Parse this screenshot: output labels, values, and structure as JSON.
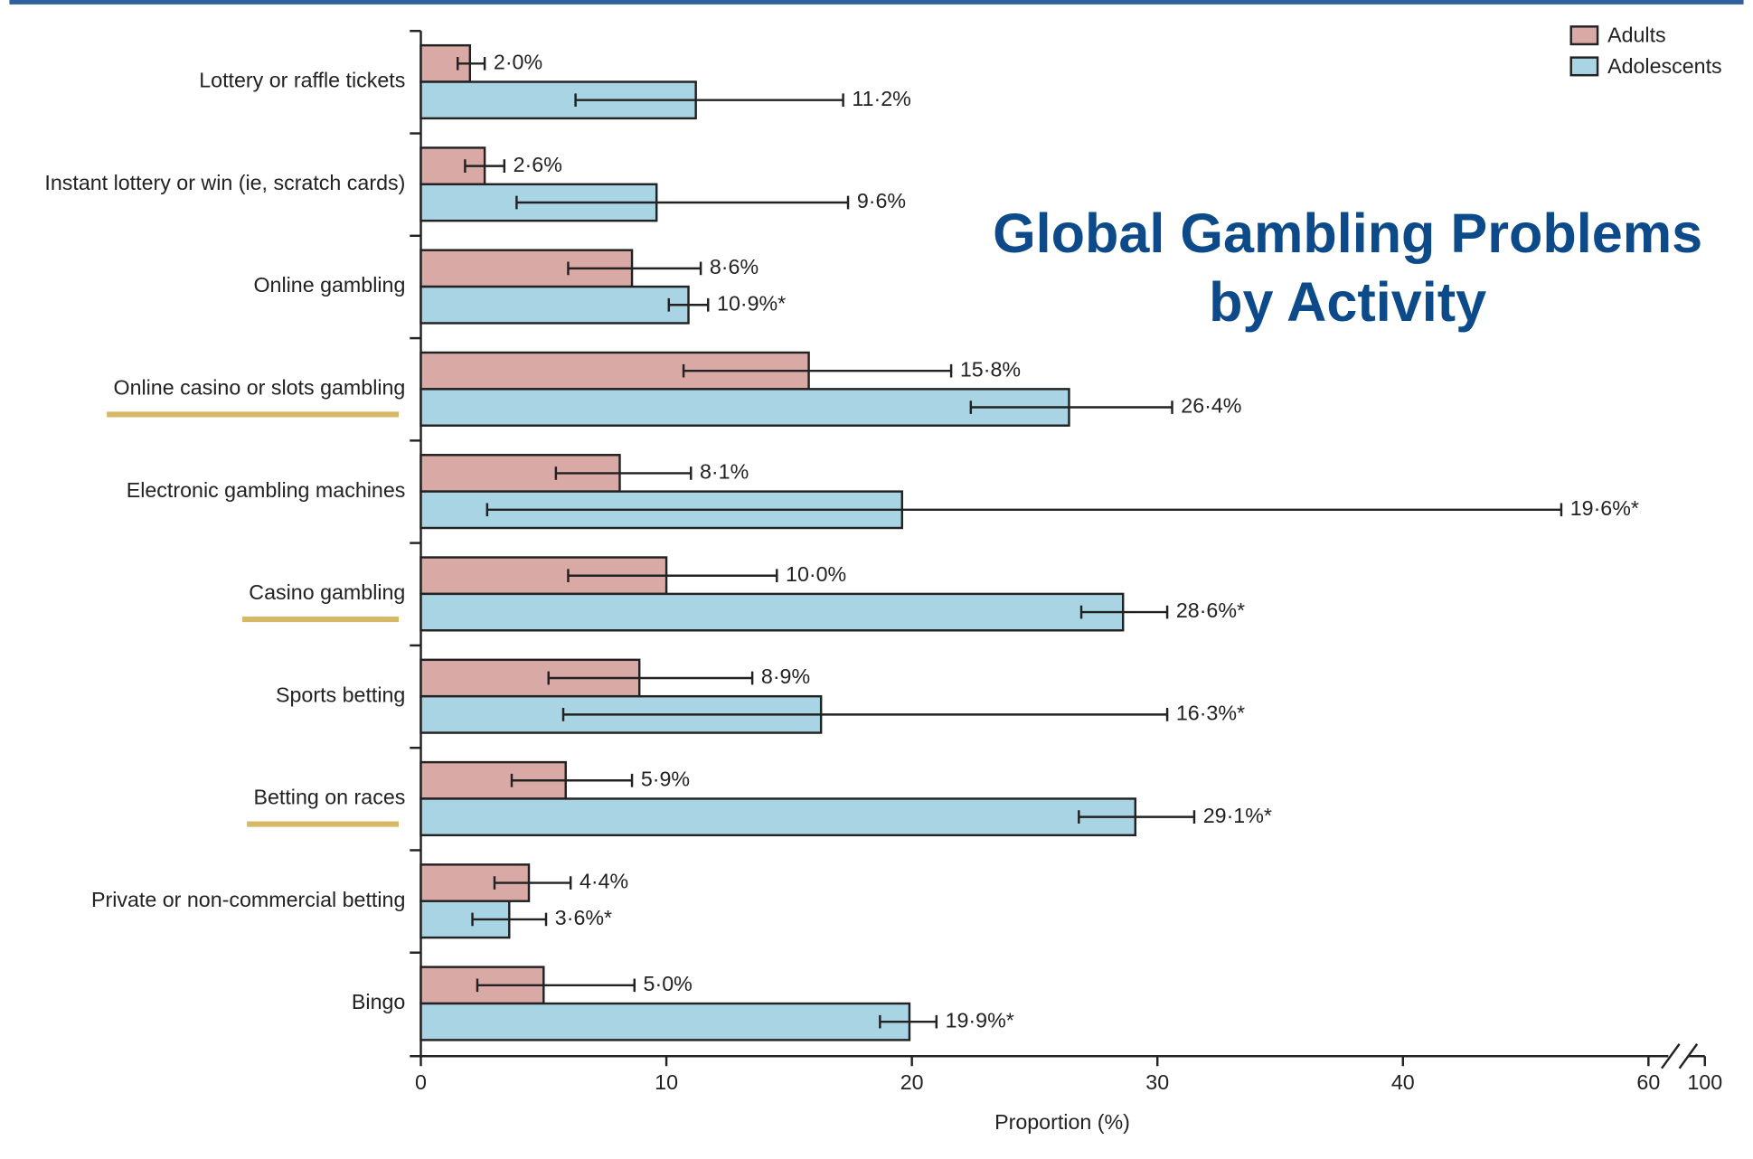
{
  "chart_data": {
    "type": "bar",
    "orientation": "horizontal",
    "title": "Global Gambling Problems by Activity",
    "xlabel": "Proportion (%)",
    "categories": [
      "Lottery or raffle tickets",
      "Instant lottery or win (ie, scratch cards)",
      "Online gambling",
      "Online casino or slots gambling",
      "Electronic gambling machines",
      "Casino gambling",
      "Sports betting",
      "Betting on races",
      "Private or non-commercial betting",
      "Bingo"
    ],
    "highlight": [
      false,
      false,
      false,
      true,
      false,
      true,
      false,
      true,
      false,
      false
    ],
    "highlight_color": "#d6b867",
    "series": [
      {
        "name": "Adults",
        "color": "#d9a9a6",
        "values": [
          2.0,
          2.6,
          8.6,
          15.8,
          8.1,
          10.0,
          8.9,
          5.9,
          4.4,
          5.0
        ],
        "value_labels": [
          "2·0%",
          "2·6%",
          "8·6%",
          "15·8%",
          "8·1%",
          "10·0%",
          "8·9%",
          "5·9%",
          "4·4%",
          "5·0%"
        ],
        "error_low": [
          1.5,
          1.8,
          6.0,
          10.7,
          5.5,
          6.0,
          5.2,
          3.7,
          3.0,
          2.3
        ],
        "error_high": [
          2.6,
          3.4,
          11.4,
          21.6,
          11.0,
          14.5,
          13.5,
          8.6,
          6.1,
          8.7
        ]
      },
      {
        "name": "Adolescents",
        "color": "#a9d4e4",
        "values": [
          11.2,
          9.6,
          10.9,
          26.4,
          19.6,
          28.6,
          16.3,
          29.1,
          3.6,
          19.9
        ],
        "value_labels": [
          "11·2%",
          "9·6%",
          "10·9%*",
          "26·4%",
          "19·6%*",
          "28·6%*",
          "16·3%*",
          "29·1%*",
          "3·6%*",
          "19·9%*"
        ],
        "error_low": [
          6.3,
          3.9,
          10.1,
          22.4,
          2.7,
          26.9,
          5.8,
          26.8,
          2.1,
          18.7
        ],
        "error_high": [
          17.2,
          17.4,
          11.7,
          30.6,
          52.9,
          30.4,
          30.4,
          31.5,
          5.1,
          21.0
        ]
      }
    ],
    "xlim": [
      0,
      100
    ],
    "xticks": [
      0,
      10,
      20,
      30,
      40,
      60,
      100
    ],
    "axis_break": [
      60,
      100
    ],
    "legend": "top-right"
  }
}
